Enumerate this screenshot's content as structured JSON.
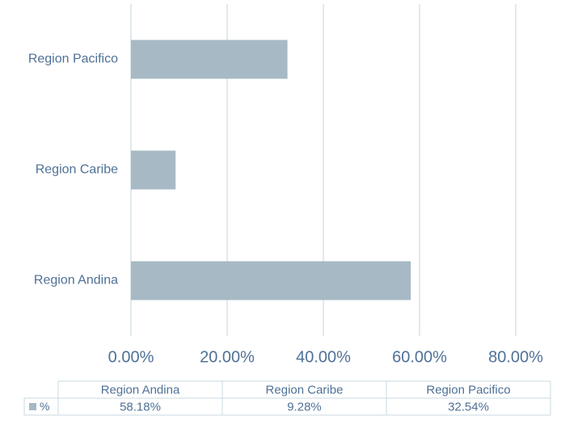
{
  "chart_data": {
    "type": "bar",
    "orientation": "horizontal",
    "categories": [
      "Region Andina",
      "Region Caribe",
      "Region Pacifico"
    ],
    "series": [
      {
        "name": "%",
        "color": "#a6b9c4",
        "values": [
          58.18,
          9.28,
          32.54
        ],
        "value_labels": [
          "58.18%",
          "9.28%",
          "32.54%"
        ]
      }
    ],
    "xlim": [
      0,
      80
    ],
    "xticks": [
      {
        "value": 0,
        "label": "0.00%"
      },
      {
        "value": 20,
        "label": "20.00%"
      },
      {
        "value": 40,
        "label": "40.00%"
      },
      {
        "value": 60,
        "label": "60.00%"
      },
      {
        "value": 80,
        "label": "80.00%"
      }
    ],
    "grid": true,
    "data_table": true
  }
}
